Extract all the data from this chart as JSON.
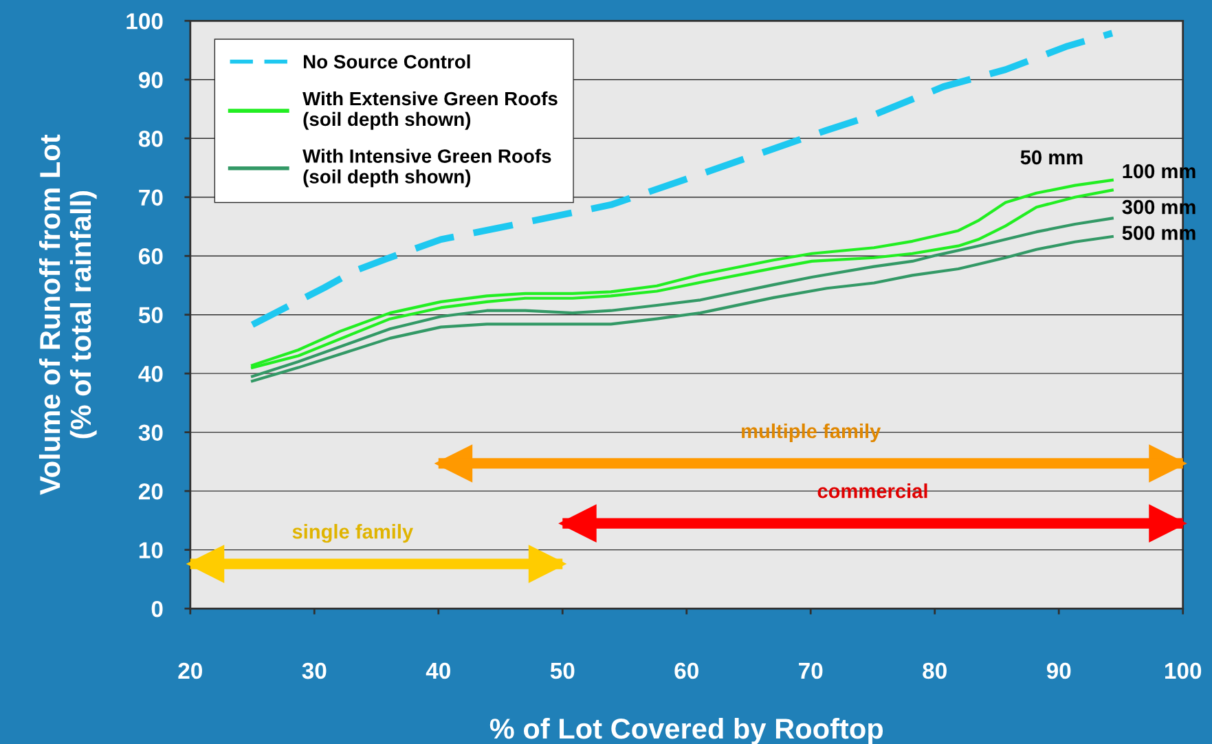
{
  "chart_data": {
    "type": "line",
    "xlabel": "% of Lot Covered by Rooftop",
    "ylabel": "Volume of Runoff from Lot\n(% of total rainfall)",
    "xlim": [
      20,
      100
    ],
    "xticks": [
      20,
      30,
      40,
      50,
      60,
      70,
      80,
      90,
      100
    ],
    "ylim": [
      0,
      100
    ],
    "yticks": [
      0,
      10,
      20,
      30,
      40,
      50,
      60,
      70,
      80,
      90,
      100
    ],
    "grid": "y",
    "legend": "top left",
    "series": [
      {
        "name": "No Source Control",
        "color": "#1ec8f0",
        "line_style": "dashed",
        "x": [
          25,
          30.8,
          33.3,
          35.8,
          40.2,
          47,
          53.9,
          60.7,
          71.3,
          75.1,
          80.7,
          85.7,
          90.7,
          94.3
        ],
        "values": [
          48.3,
          54.6,
          57.5,
          59.5,
          62.8,
          65.7,
          68.7,
          73.6,
          81.4,
          84,
          88.8,
          91.7,
          95.7,
          97.9
        ]
      },
      {
        "name": "With Extensive Green Roofs\n(soil depth shown)",
        "color": "#22ee22",
        "line_style": "solid",
        "x": [
          25,
          28.7,
          32.1,
          36.1,
          40.2,
          43.9,
          47,
          50.8,
          53.9,
          57.6,
          61.1,
          67,
          70.1,
          75.1,
          78.2,
          81.9,
          83.5,
          85.7,
          88.2,
          91.3,
          94.3
        ],
        "values": [
          41.4,
          44,
          47.2,
          50.3,
          52.2,
          53.2,
          53.6,
          53.6,
          53.9,
          54.9,
          56.8,
          59.3,
          60.4,
          61.4,
          62.5,
          64.3,
          66,
          69.1,
          70.7,
          72,
          72.9
        ]
      },
      {
        "color": "#22ee22",
        "line_style": "solid",
        "x": [
          25,
          28.7,
          36.1,
          40.2,
          43.9,
          47,
          50.8,
          53.9,
          57.6,
          61.1,
          67,
          70.1,
          75.1,
          78.2,
          81.9,
          83.5,
          85.7,
          88.2,
          91.3,
          94.3
        ],
        "values": [
          41,
          43,
          49.3,
          51.2,
          52.2,
          52.8,
          52.8,
          53.2,
          54,
          55.5,
          57.9,
          59.1,
          59.7,
          60.4,
          61.7,
          62.8,
          65.1,
          68.3,
          70,
          71.2
        ]
      },
      {
        "name": "With Intensive Green Roofs\n(soil depth shown)",
        "color": "#339966",
        "line_style": "solid",
        "x": [
          25,
          28.7,
          36.1,
          40.2,
          43.9,
          47,
          50.8,
          53.9,
          57.6,
          61.1,
          67,
          70.1,
          75.1,
          78.2,
          80.1,
          83.5,
          88.2,
          91.3,
          94.3
        ],
        "values": [
          39.5,
          42,
          47.6,
          49.7,
          50.7,
          50.7,
          50.3,
          50.7,
          51.6,
          52.5,
          55.1,
          56.4,
          58.2,
          59.1,
          60.1,
          61.7,
          64.1,
          65.4,
          66.4
        ]
      },
      {
        "color": "#339966",
        "line_style": "solid",
        "x": [
          25,
          28.7,
          36.1,
          40.2,
          43.9,
          47,
          50.8,
          53.9,
          57.6,
          61.1,
          67,
          71.3,
          75.1,
          78.2,
          81.9,
          83.5,
          85.7,
          88.2,
          91.3,
          94.3
        ],
        "values": [
          38.7,
          41,
          46,
          47.9,
          48.4,
          48.4,
          48.4,
          48.4,
          49.3,
          50.3,
          52.9,
          54.5,
          55.4,
          56.7,
          57.8,
          58.6,
          59.7,
          61.1,
          62.4,
          63.3
        ]
      },
      {
        "color": "#ffcc00",
        "line_style": "solid",
        "x": [
          20,
          50
        ],
        "values": [
          7.6,
          7.6
        ]
      },
      {
        "color": "#ff9900",
        "line_style": "solid",
        "x": [
          40,
          100
        ],
        "values": [
          24.7,
          24.7
        ]
      },
      {
        "color": "#ff0000",
        "line_style": "solid",
        "x": [
          50,
          100
        ],
        "values": [
          14.5,
          14.5
        ]
      }
    ],
    "annotations": [
      "50 mm",
      "100 mm",
      "300 mm",
      "500 mm",
      "single family",
      "multiple family",
      "commercial"
    ]
  }
}
